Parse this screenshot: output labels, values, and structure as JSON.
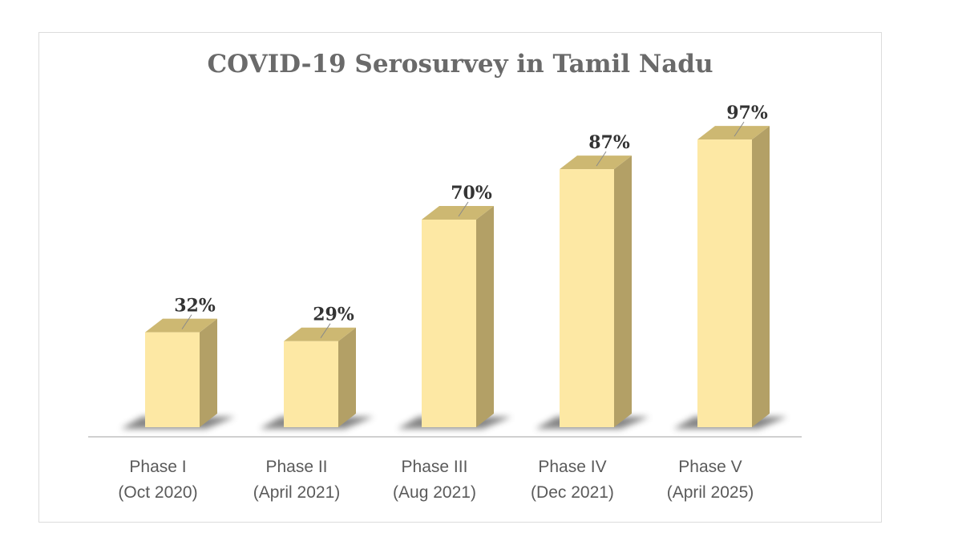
{
  "chart_data": {
    "type": "bar",
    "title": "COVID-19 Serosurvey in Tamil Nadu",
    "categories": [
      [
        "Phase I",
        "(Oct 2020)"
      ],
      [
        "Phase II",
        "(April 2021)"
      ],
      [
        "Phase III",
        "(Aug 2021)"
      ],
      [
        "Phase IV",
        "(Dec 2021)"
      ],
      [
        "Phase V",
        "(April 2025)"
      ]
    ],
    "values": [
      32,
      29,
      70,
      87,
      97
    ],
    "data_labels": [
      "32%",
      "29%",
      "70%",
      "87%",
      "97%"
    ],
    "ylim": [
      0,
      100
    ],
    "grid": false,
    "legend": "none",
    "colors": {
      "bar_front": "#fde8a4",
      "bar_top": "#cdb872",
      "bar_side": "#b3a066",
      "shadow": "#6f6f6f",
      "axis": "#d0d0d0"
    }
  }
}
